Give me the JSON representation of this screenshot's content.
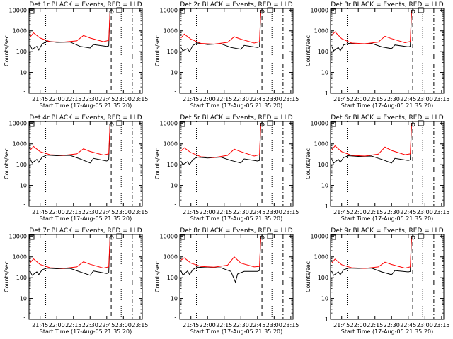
{
  "chart_data": {
    "type": "line",
    "title_template": "Det {det} BLACK = Events, RED = LLD",
    "xlabel": "Start Time (17-Aug-05 21:35:20)",
    "ylabel": "Counts/sec",
    "x_tick_labels": [
      "21:45",
      "22:00",
      "22:15",
      "22:30",
      "22:45",
      "23:00",
      "23:15"
    ],
    "y_tick_labels": [
      "1",
      "10",
      "100",
      "1000",
      "10000"
    ],
    "y_scale": "log",
    "ylim": [
      1,
      12000
    ],
    "xlim": [
      "21:35",
      "23:17"
    ],
    "vertical_markers": {
      "dotted": "21:50",
      "dashed": "22:49",
      "dash_dot": "23:08",
      "dotted_short": "22:58"
    },
    "series_colors": {
      "events": "#000000",
      "lld": "#ff0000"
    },
    "panels": [
      {
        "det": "1r",
        "events": [
          [
            21.6,
            200
          ],
          [
            21.63,
            130
          ],
          [
            21.7,
            180
          ],
          [
            21.73,
            120
          ],
          [
            21.78,
            230
          ],
          [
            21.85,
            320
          ],
          [
            22.0,
            280
          ],
          [
            22.2,
            290
          ],
          [
            22.35,
            180
          ],
          [
            22.5,
            150
          ],
          [
            22.55,
            220
          ],
          [
            22.75,
            180
          ],
          [
            22.78,
            190
          ],
          [
            22.8,
            10000
          ]
        ],
        "lld": [
          [
            21.6,
            500
          ],
          [
            21.65,
            800
          ],
          [
            21.75,
            450
          ],
          [
            21.9,
            300
          ],
          [
            22.1,
            290
          ],
          [
            22.3,
            330
          ],
          [
            22.4,
            600
          ],
          [
            22.5,
            450
          ],
          [
            22.7,
            300
          ],
          [
            22.78,
            350
          ],
          [
            22.8,
            10000
          ]
        ]
      },
      {
        "det": "2r",
        "events": [
          [
            21.6,
            160
          ],
          [
            21.63,
            110
          ],
          [
            21.7,
            140
          ],
          [
            21.73,
            100
          ],
          [
            21.78,
            200
          ],
          [
            21.85,
            260
          ],
          [
            22.0,
            220
          ],
          [
            22.2,
            240
          ],
          [
            22.35,
            160
          ],
          [
            22.5,
            130
          ],
          [
            22.55,
            200
          ],
          [
            22.75,
            160
          ],
          [
            22.78,
            170
          ],
          [
            22.8,
            10000
          ]
        ],
        "lld": [
          [
            21.6,
            450
          ],
          [
            21.65,
            700
          ],
          [
            21.75,
            400
          ],
          [
            21.9,
            250
          ],
          [
            22.1,
            230
          ],
          [
            22.3,
            280
          ],
          [
            22.4,
            520
          ],
          [
            22.5,
            400
          ],
          [
            22.7,
            260
          ],
          [
            22.78,
            300
          ],
          [
            22.8,
            10000
          ]
        ]
      },
      {
        "det": "3r",
        "events": [
          [
            21.6,
            180
          ],
          [
            21.63,
            110
          ],
          [
            21.7,
            160
          ],
          [
            21.73,
            110
          ],
          [
            21.78,
            210
          ],
          [
            21.85,
            250
          ],
          [
            22.0,
            230
          ],
          [
            22.2,
            250
          ],
          [
            22.35,
            170
          ],
          [
            22.5,
            140
          ],
          [
            22.55,
            210
          ],
          [
            22.75,
            170
          ],
          [
            22.78,
            180
          ],
          [
            22.8,
            10000
          ]
        ],
        "lld": [
          [
            21.6,
            600
          ],
          [
            21.65,
            900
          ],
          [
            21.75,
            420
          ],
          [
            21.9,
            260
          ],
          [
            22.1,
            240
          ],
          [
            22.3,
            290
          ],
          [
            22.4,
            550
          ],
          [
            22.5,
            420
          ],
          [
            22.7,
            270
          ],
          [
            22.78,
            310
          ],
          [
            22.8,
            10000
          ]
        ]
      },
      {
        "det": "4r",
        "events": [
          [
            21.6,
            190
          ],
          [
            21.63,
            120
          ],
          [
            21.7,
            180
          ],
          [
            21.73,
            130
          ],
          [
            21.78,
            230
          ],
          [
            21.85,
            290
          ],
          [
            22.0,
            270
          ],
          [
            22.2,
            280
          ],
          [
            22.35,
            190
          ],
          [
            22.5,
            120
          ],
          [
            22.55,
            200
          ],
          [
            22.75,
            150
          ],
          [
            22.78,
            170
          ],
          [
            22.8,
            10000
          ]
        ],
        "lld": [
          [
            21.6,
            500
          ],
          [
            21.65,
            750
          ],
          [
            21.75,
            420
          ],
          [
            21.9,
            300
          ],
          [
            22.1,
            280
          ],
          [
            22.3,
            330
          ],
          [
            22.4,
            580
          ],
          [
            22.5,
            430
          ],
          [
            22.7,
            290
          ],
          [
            22.78,
            330
          ],
          [
            22.8,
            10000
          ]
        ]
      },
      {
        "det": "5r",
        "events": [
          [
            21.6,
            150
          ],
          [
            21.63,
            100
          ],
          [
            21.7,
            140
          ],
          [
            21.73,
            100
          ],
          [
            21.78,
            180
          ],
          [
            21.85,
            230
          ],
          [
            22.0,
            210
          ],
          [
            22.2,
            230
          ],
          [
            22.35,
            160
          ],
          [
            22.5,
            120
          ],
          [
            22.55,
            190
          ],
          [
            22.75,
            150
          ],
          [
            22.78,
            160
          ],
          [
            22.8,
            10000
          ]
        ],
        "lld": [
          [
            21.6,
            450
          ],
          [
            21.65,
            650
          ],
          [
            21.75,
            380
          ],
          [
            21.9,
            240
          ],
          [
            22.1,
            220
          ],
          [
            22.3,
            280
          ],
          [
            22.4,
            560
          ],
          [
            22.5,
            420
          ],
          [
            22.7,
            260
          ],
          [
            22.78,
            300
          ],
          [
            22.8,
            10000
          ]
        ]
      },
      {
        "det": "6r",
        "events": [
          [
            21.6,
            190
          ],
          [
            21.63,
            120
          ],
          [
            21.7,
            180
          ],
          [
            21.73,
            130
          ],
          [
            21.78,
            220
          ],
          [
            21.85,
            270
          ],
          [
            22.0,
            250
          ],
          [
            22.2,
            260
          ],
          [
            22.35,
            180
          ],
          [
            22.5,
            120
          ],
          [
            22.55,
            200
          ],
          [
            22.75,
            160
          ],
          [
            22.78,
            170
          ],
          [
            22.8,
            10000
          ]
        ],
        "lld": [
          [
            21.6,
            500
          ],
          [
            21.65,
            800
          ],
          [
            21.75,
            420
          ],
          [
            21.9,
            280
          ],
          [
            22.1,
            260
          ],
          [
            22.3,
            320
          ],
          [
            22.4,
            700
          ],
          [
            22.5,
            480
          ],
          [
            22.7,
            300
          ],
          [
            22.78,
            330
          ],
          [
            22.8,
            10000
          ]
        ]
      },
      {
        "det": "7r",
        "events": [
          [
            21.6,
            200
          ],
          [
            21.63,
            130
          ],
          [
            21.7,
            190
          ],
          [
            21.73,
            140
          ],
          [
            21.78,
            240
          ],
          [
            21.85,
            290
          ],
          [
            22.0,
            270
          ],
          [
            22.2,
            280
          ],
          [
            22.35,
            190
          ],
          [
            22.5,
            130
          ],
          [
            22.55,
            210
          ],
          [
            22.75,
            160
          ],
          [
            22.78,
            170
          ],
          [
            22.8,
            10000
          ]
        ],
        "lld": [
          [
            21.6,
            520
          ],
          [
            21.65,
            800
          ],
          [
            21.75,
            430
          ],
          [
            21.9,
            300
          ],
          [
            22.1,
            280
          ],
          [
            22.3,
            330
          ],
          [
            22.4,
            580
          ],
          [
            22.5,
            440
          ],
          [
            22.7,
            290
          ],
          [
            22.78,
            330
          ],
          [
            22.8,
            10000
          ]
        ]
      },
      {
        "det": "8r",
        "events": [
          [
            21.6,
            220
          ],
          [
            21.63,
            130
          ],
          [
            21.7,
            210
          ],
          [
            21.73,
            140
          ],
          [
            21.78,
            250
          ],
          [
            21.85,
            320
          ],
          [
            22.0,
            300
          ],
          [
            22.2,
            300
          ],
          [
            22.35,
            200
          ],
          [
            22.42,
            60
          ],
          [
            22.45,
            150
          ],
          [
            22.55,
            200
          ],
          [
            22.75,
            200
          ],
          [
            22.78,
            220
          ],
          [
            22.8,
            10000
          ]
        ],
        "lld": [
          [
            21.6,
            700
          ],
          [
            21.65,
            900
          ],
          [
            21.75,
            500
          ],
          [
            21.9,
            350
          ],
          [
            22.1,
            320
          ],
          [
            22.3,
            400
          ],
          [
            22.4,
            1000
          ],
          [
            22.5,
            500
          ],
          [
            22.7,
            330
          ],
          [
            22.78,
            350
          ],
          [
            22.8,
            10000
          ]
        ]
      },
      {
        "det": "9r",
        "events": [
          [
            21.6,
            200
          ],
          [
            21.63,
            130
          ],
          [
            21.7,
            190
          ],
          [
            21.73,
            140
          ],
          [
            21.78,
            240
          ],
          [
            21.85,
            290
          ],
          [
            22.0,
            280
          ],
          [
            22.2,
            290
          ],
          [
            22.35,
            190
          ],
          [
            22.5,
            140
          ],
          [
            22.55,
            220
          ],
          [
            22.75,
            190
          ],
          [
            22.78,
            200
          ],
          [
            22.8,
            10000
          ]
        ],
        "lld": [
          [
            21.6,
            500
          ],
          [
            21.65,
            780
          ],
          [
            21.75,
            420
          ],
          [
            21.9,
            300
          ],
          [
            22.1,
            280
          ],
          [
            22.3,
            330
          ],
          [
            22.4,
            560
          ],
          [
            22.5,
            430
          ],
          [
            22.7,
            290
          ],
          [
            22.78,
            330
          ],
          [
            22.8,
            10000
          ]
        ]
      }
    ]
  }
}
